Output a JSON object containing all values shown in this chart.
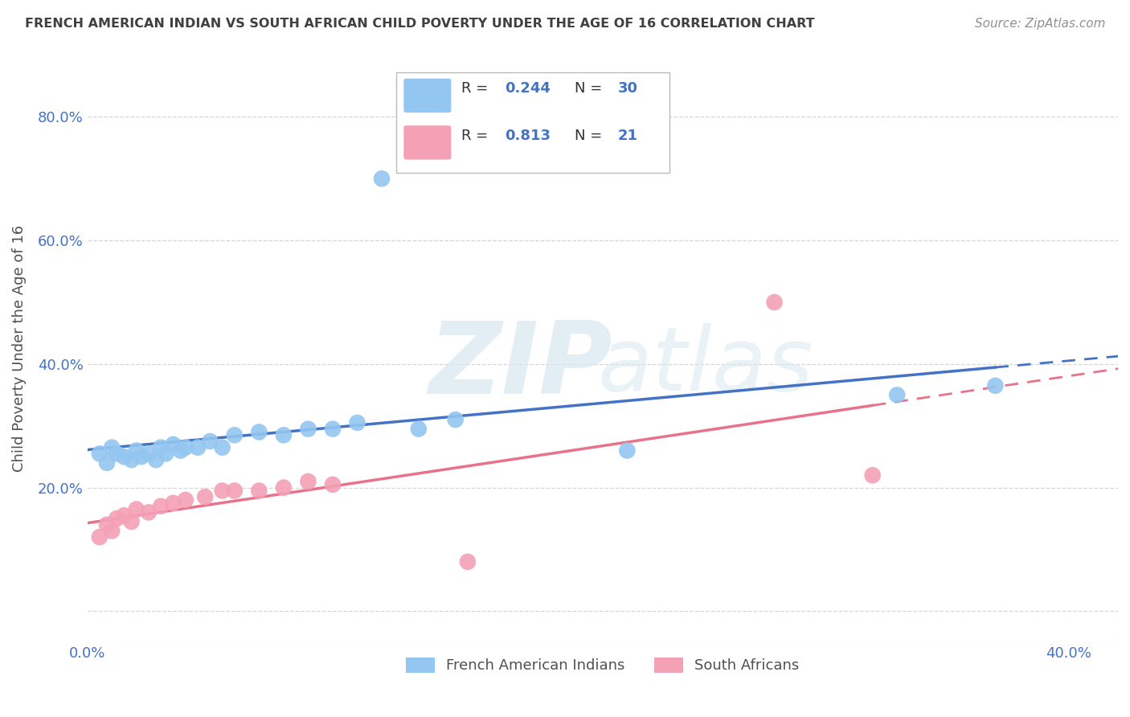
{
  "title": "FRENCH AMERICAN INDIAN VS SOUTH AFRICAN CHILD POVERTY UNDER THE AGE OF 16 CORRELATION CHART",
  "source": "Source: ZipAtlas.com",
  "ylabel": "Child Poverty Under the Age of 16",
  "xlim": [
    0.0,
    0.42
  ],
  "ylim": [
    -0.05,
    0.9
  ],
  "xticks": [
    0.0,
    0.1,
    0.2,
    0.3,
    0.4
  ],
  "yticks": [
    0.0,
    0.2,
    0.4,
    0.6,
    0.8
  ],
  "ytick_labels": [
    "",
    "20.0%",
    "40.0%",
    "60.0%",
    "80.0%"
  ],
  "xtick_labels": [
    "0.0%",
    "",
    "",
    "",
    "40.0%"
  ],
  "R_blue": 0.244,
  "N_blue": 30,
  "R_pink": 0.813,
  "N_pink": 21,
  "legend_label_blue": "French American Indians",
  "legend_label_pink": "South Africans",
  "blue_color": "#93C6F0",
  "pink_color": "#F4A0B5",
  "blue_line_color": "#4472C4",
  "pink_line_color": "#E8728A",
  "title_color": "#404040",
  "source_color": "#909090",
  "axis_label_color": "#505050",
  "tick_color": "#4472C4",
  "grid_color": "#CCCCCC",
  "blue_scatter_x": [
    0.005,
    0.008,
    0.01,
    0.012,
    0.015,
    0.018,
    0.02,
    0.022,
    0.025,
    0.028,
    0.03,
    0.032,
    0.035,
    0.038,
    0.04,
    0.045,
    0.05,
    0.055,
    0.06,
    0.07,
    0.08,
    0.09,
    0.1,
    0.11,
    0.12,
    0.135,
    0.15,
    0.22,
    0.33,
    0.37
  ],
  "blue_scatter_y": [
    0.255,
    0.24,
    0.265,
    0.255,
    0.25,
    0.245,
    0.26,
    0.25,
    0.255,
    0.245,
    0.265,
    0.255,
    0.27,
    0.26,
    0.265,
    0.265,
    0.275,
    0.265,
    0.285,
    0.29,
    0.285,
    0.295,
    0.295,
    0.305,
    0.7,
    0.295,
    0.31,
    0.26,
    0.35,
    0.365
  ],
  "pink_scatter_x": [
    0.005,
    0.008,
    0.01,
    0.012,
    0.015,
    0.018,
    0.02,
    0.025,
    0.03,
    0.035,
    0.04,
    0.048,
    0.055,
    0.06,
    0.07,
    0.08,
    0.09,
    0.1,
    0.155,
    0.28,
    0.32
  ],
  "pink_scatter_y": [
    0.12,
    0.14,
    0.13,
    0.15,
    0.155,
    0.145,
    0.165,
    0.16,
    0.17,
    0.175,
    0.18,
    0.185,
    0.195,
    0.195,
    0.195,
    0.2,
    0.21,
    0.205,
    0.08,
    0.5,
    0.22
  ],
  "blue_line_x_start": 0.0,
  "blue_line_x_solid_end": 0.37,
  "blue_line_x_end": 0.42,
  "pink_line_x_start": 0.0,
  "pink_line_x_solid_end": 0.32,
  "pink_line_x_end": 0.42
}
